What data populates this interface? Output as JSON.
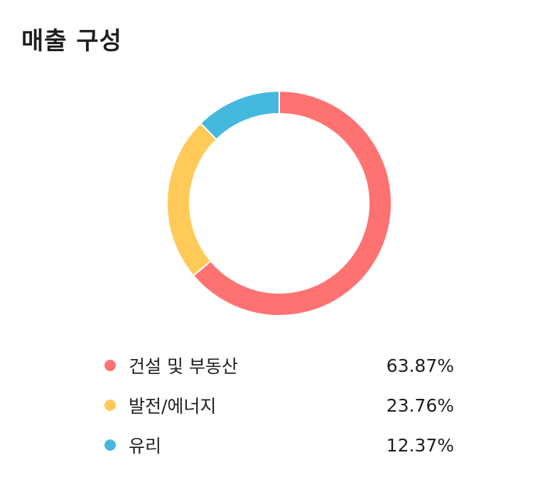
{
  "title": "매출 구성",
  "chart_data": {
    "type": "pie",
    "variant": "donut",
    "title": "매출 구성",
    "series": [
      {
        "name": "건설 및 부동산",
        "value": 63.87,
        "label": "63.87%",
        "color": "#FF7272"
      },
      {
        "name": "발전/에너지",
        "value": 23.76,
        "label": "23.76%",
        "color": "#FFCA57"
      },
      {
        "name": "유리",
        "value": 12.37,
        "label": "12.37%",
        "color": "#45B8E0"
      }
    ],
    "legend_placement": "bottom"
  }
}
